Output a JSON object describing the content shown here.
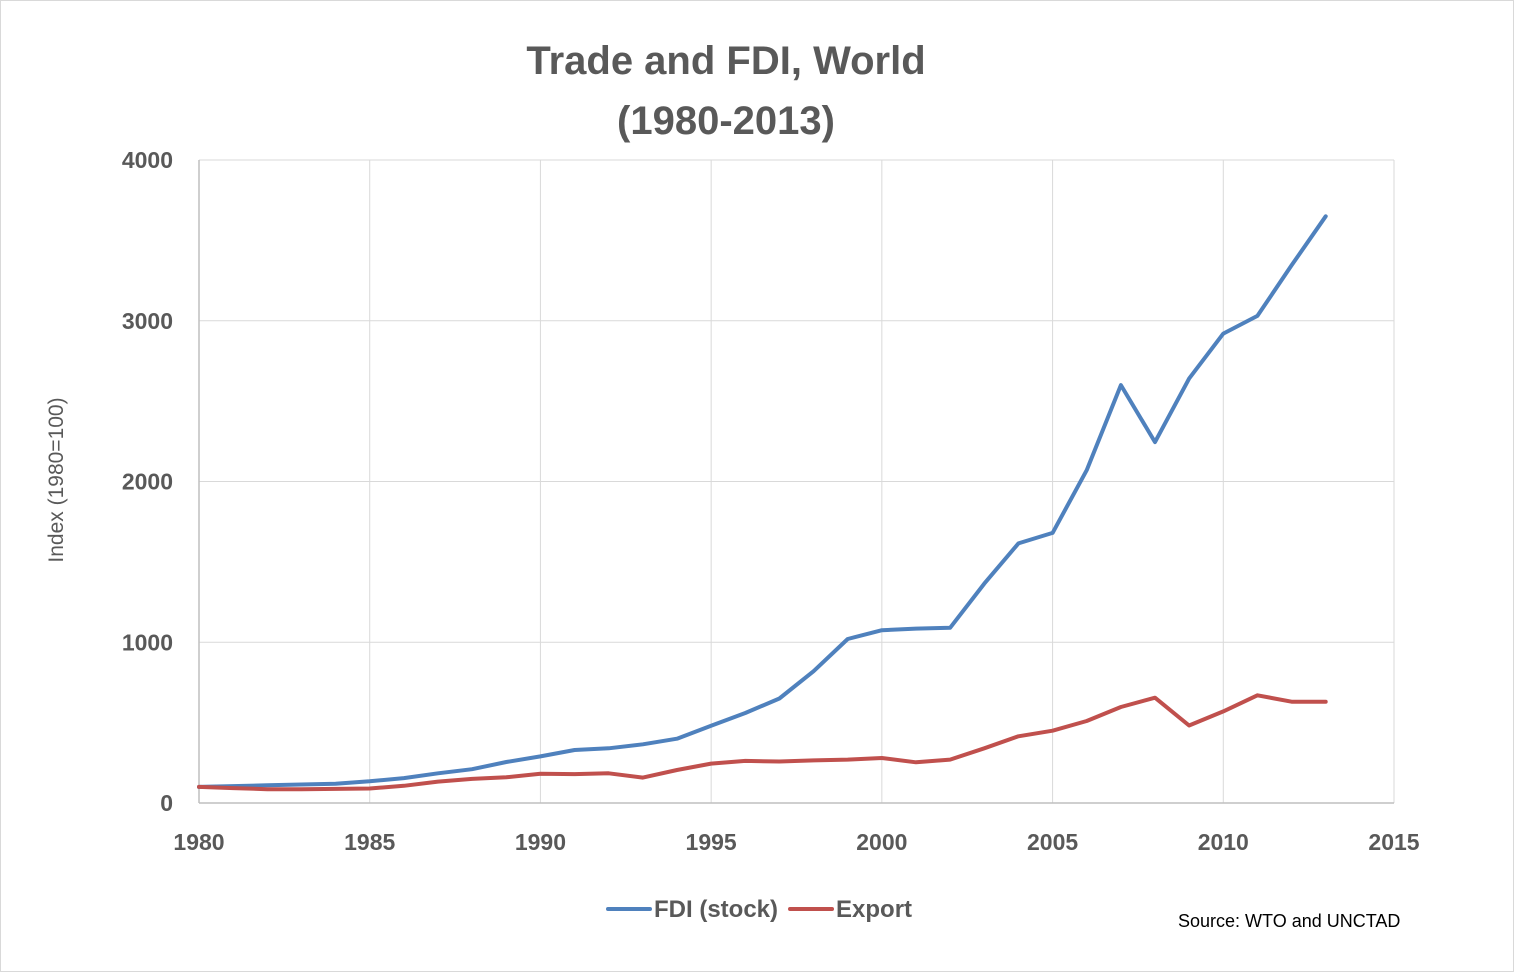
{
  "chart_data": {
    "type": "line",
    "title_lines": [
      "Trade and FDI, World",
      "(1980-2013)"
    ],
    "xlabel": "",
    "ylabel": "Index  (1980=100)",
    "xlim": [
      1980,
      2015
    ],
    "ylim": [
      0,
      4000
    ],
    "x_ticks": [
      1980,
      1985,
      1990,
      1995,
      2000,
      2005,
      2010,
      2015
    ],
    "y_ticks": [
      0,
      1000,
      2000,
      3000,
      4000
    ],
    "grid": true,
    "legend_position": "bottom",
    "x": [
      1980,
      1981,
      1982,
      1983,
      1984,
      1985,
      1986,
      1987,
      1988,
      1989,
      1990,
      1991,
      1992,
      1993,
      1994,
      1995,
      1996,
      1997,
      1998,
      1999,
      2000,
      2001,
      2002,
      2003,
      2004,
      2005,
      2006,
      2007,
      2008,
      2009,
      2010,
      2011,
      2012,
      2013
    ],
    "series": [
      {
        "name": "FDI (stock)",
        "color": "#4f81bd",
        "values": [
          100,
          105,
          110,
          115,
          120,
          135,
          155,
          185,
          210,
          255,
          290,
          330,
          340,
          365,
          400,
          480,
          560,
          650,
          820,
          1020,
          1075,
          1085,
          1090,
          1365,
          1615,
          1680,
          2070,
          2600,
          2245,
          2640,
          2920,
          3030,
          3345,
          3650
        ]
      },
      {
        "name": "Export",
        "color": "#c0504d",
        "values": [
          100,
          93,
          86,
          85,
          88,
          90,
          107,
          133,
          150,
          160,
          182,
          180,
          185,
          158,
          205,
          245,
          262,
          258,
          265,
          270,
          280,
          253,
          270,
          340,
          415,
          450,
          510,
          597,
          655,
          482,
          570,
          670,
          630,
          630
        ]
      }
    ]
  },
  "source_note": "Source: WTO and  UNCTAD"
}
